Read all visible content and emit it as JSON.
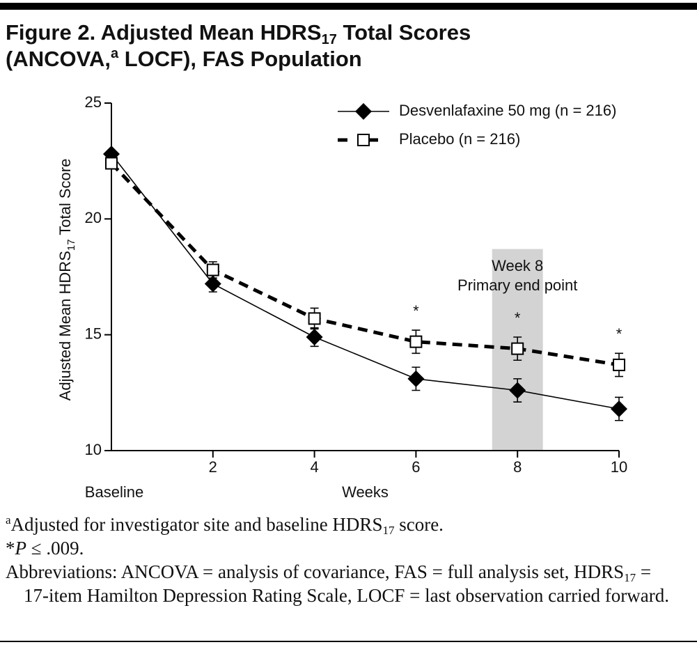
{
  "chart_data": {
    "type": "line",
    "title": [
      [
        "Figure 2. Adjusted Mean HDRS",
        {
          "text": "17",
          "style": "sub"
        },
        " Total Scores"
      ],
      [
        "(ANCOVA,",
        {
          "text": "a",
          "style": "sup"
        },
        " LOCF), FAS Population"
      ]
    ],
    "y_label": [
      "Adjusted Mean HDRS",
      {
        "text": "17",
        "style": "sub"
      },
      " Total Score"
    ],
    "x_label": "Weeks",
    "x": [
      0,
      2,
      4,
      6,
      8,
      10
    ],
    "xlim": [
      0,
      10
    ],
    "xticks": [
      {
        "value": 0,
        "label": "Baseline"
      },
      2,
      4,
      6,
      8,
      10
    ],
    "ylim": [
      10,
      25
    ],
    "yticks": [
      10,
      15,
      20,
      25
    ],
    "grid": false,
    "legend": "top-right",
    "series": [
      {
        "name": "Desvenlafaxine 50 mg (n = 216)",
        "color": "#000000",
        "line_style": "solid",
        "marker": "diamond",
        "values": [
          22.8,
          17.2,
          14.9,
          13.1,
          12.6,
          11.8
        ],
        "errors": [
          null,
          0.35,
          0.4,
          0.5,
          0.5,
          0.5
        ]
      },
      {
        "name": "Placebo (n = 216)",
        "color": "#000000",
        "line_style": "dashed",
        "marker": "square-open",
        "values": [
          22.4,
          17.8,
          15.7,
          14.7,
          14.4,
          13.7
        ],
        "errors": [
          null,
          0.35,
          0.45,
          0.5,
          0.5,
          0.5
        ]
      }
    ],
    "significance": [
      {
        "x": 6,
        "label": "*"
      },
      {
        "x": 8,
        "label": "*"
      },
      {
        "x": 10,
        "label": "*"
      }
    ],
    "highlight": {
      "x": [
        7.5,
        8.5
      ],
      "label": [
        "Week 8",
        "Primary end point"
      ],
      "color": "#d3d3d3"
    }
  },
  "footnotes": [
    [
      {
        "text": "a",
        "style": "sup"
      },
      "Adjusted for investigator site and baseline HDRS",
      {
        "text": "17",
        "style": "sub"
      },
      " score."
    ],
    [
      "*",
      {
        "text": "P",
        "style": "italic"
      },
      " ≤ .009."
    ],
    [
      "Abbreviations: ANCOVA = analysis of covariance, FAS = full analysis set, HDRS",
      {
        "text": "17",
        "style": "sub"
      },
      " = 17-item Hamilton Depression Rating Scale, LOCF = last observation carried forward."
    ]
  ]
}
